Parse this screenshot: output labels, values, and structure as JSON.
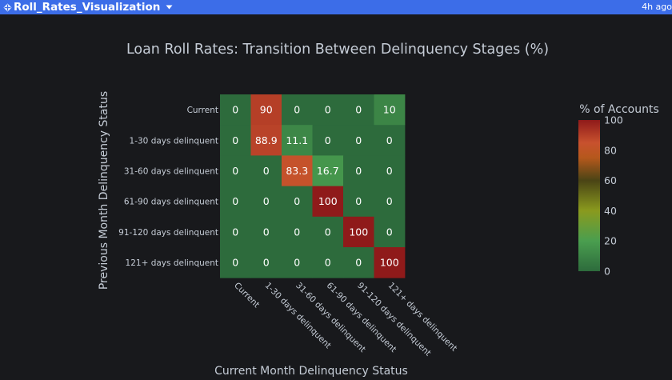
{
  "app": {
    "title": "Roll_Rates_Visualization",
    "updated": "4h ago",
    "icons": {
      "app": "app-icon",
      "menu": "chevron-down-icon"
    }
  },
  "chart_data": {
    "type": "heatmap",
    "title": "Loan Roll Rates: Transition Between Delinquency Stages (%)",
    "xlabel": "Current Month Delinquency Status",
    "ylabel": "Previous Month Delinquency Status",
    "x": [
      "Current",
      "1-30 days delinquent",
      "31-60 days delinquent",
      "61-90 days delinquent",
      "91-120 days delinquent",
      "121+ days delinquent"
    ],
    "y": [
      "Current",
      "1-30 days delinquent",
      "31-60 days delinquent",
      "61-90 days delinquent",
      "91-120 days delinquent",
      "121+ days delinquent"
    ],
    "z": [
      [
        0,
        90,
        0,
        0,
        0,
        10
      ],
      [
        0,
        88.9,
        11.1,
        0,
        0,
        0
      ],
      [
        0,
        0,
        83.3,
        16.7,
        0,
        0
      ],
      [
        0,
        0,
        0,
        100,
        0,
        0
      ],
      [
        0,
        0,
        0,
        0,
        100,
        0
      ],
      [
        0,
        0,
        0,
        0,
        0,
        100
      ]
    ],
    "colorbar": {
      "title": "% of Accounts",
      "range": [
        0,
        100
      ],
      "ticks": [
        0,
        20,
        40,
        60,
        80,
        100
      ]
    },
    "colorscale": [
      "#2d6b3c",
      "#4a9e4f",
      "#8a9a1e",
      "#4a4415",
      "#b5581c",
      "#c8512e",
      "#8f1a1a"
    ],
    "colors": {
      "background": "#18191c",
      "text": "#c5ccd6",
      "bar": "#3c6de8"
    }
  }
}
